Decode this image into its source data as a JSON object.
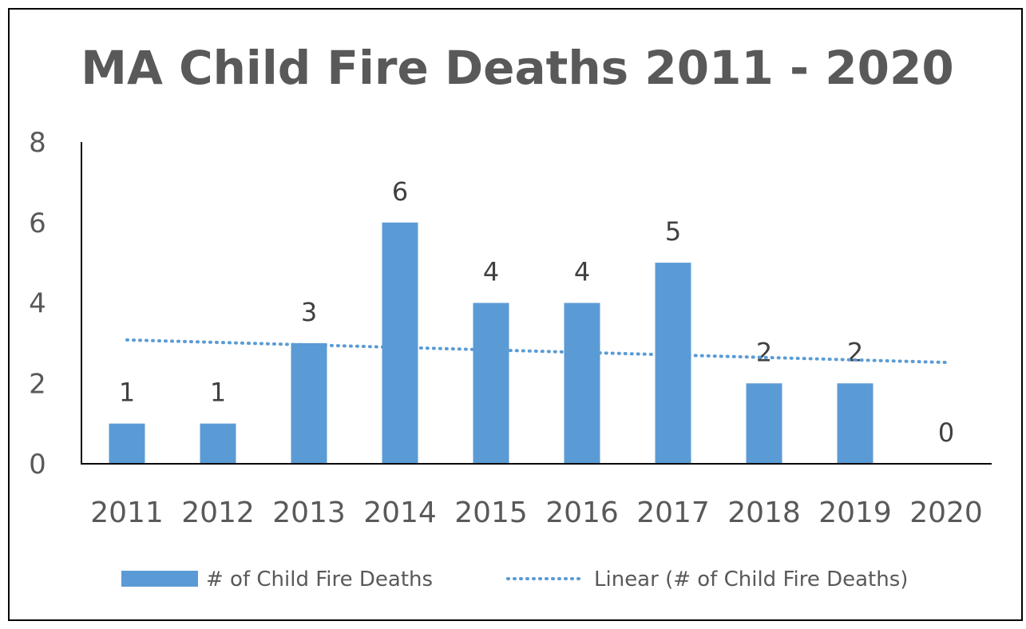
{
  "chart_data": {
    "type": "bar",
    "title": "MA Child Fire Deaths 2011 - 2020",
    "categories": [
      "2011",
      "2012",
      "2013",
      "2014",
      "2015",
      "2016",
      "2017",
      "2018",
      "2019",
      "2020"
    ],
    "values": [
      1,
      1,
      3,
      6,
      4,
      4,
      5,
      2,
      2,
      0
    ],
    "data_labels": [
      "1",
      "1",
      "3",
      "6",
      "4",
      "4",
      "5",
      "2",
      "2",
      "0"
    ],
    "series_name": "# of Child Fire Deaths",
    "trendline": {
      "type": "linear",
      "name": "Linear (# of Child Fire Deaths)",
      "start_value": 3.08,
      "end_value": 2.52
    },
    "ylim": [
      0,
      8
    ],
    "yticks": [
      "0",
      "2",
      "4",
      "6",
      "8"
    ],
    "ytick_values": [
      0,
      2,
      4,
      6,
      8
    ],
    "xlabel": "",
    "ylabel": "",
    "legend": {
      "position": "bottom",
      "entries": [
        "# of Child Fire Deaths",
        "Linear (# of Child Fire Deaths)"
      ]
    },
    "colors": {
      "bar": "#5B9BD5",
      "trendline": "#5B9BD5",
      "axis": "#000000",
      "text": "#595959"
    }
  }
}
